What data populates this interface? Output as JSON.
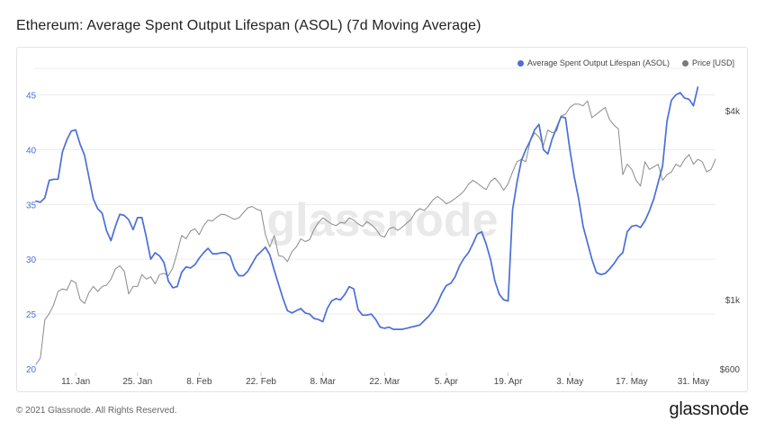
{
  "title": "Ethereum: Average Spent Output Lifespan (ASOL) (7d Moving Average)",
  "footer": {
    "copyright": "© 2021 Glassnode. All Rights Reserved.",
    "brand": "glassnode"
  },
  "watermark": "glassnode",
  "colors": {
    "asol": "#4a6fd8",
    "price": "#8a8a8a",
    "grid": "#ececec"
  },
  "chart_data": {
    "type": "line",
    "x_axis": {
      "tick_labels": [
        "11. Jan",
        "25. Jan",
        "8. Feb",
        "22. Feb",
        "8. Mar",
        "22. Mar",
        "5. Apr",
        "19. Apr",
        "3. May",
        "17. May",
        "31. May"
      ],
      "tick_days": [
        10,
        24,
        38,
        52,
        66,
        80,
        94,
        108,
        122,
        136,
        150
      ],
      "range_days": [
        1,
        155
      ]
    },
    "y_left": {
      "ticks": [
        20,
        25,
        30,
        35,
        40,
        45
      ],
      "range": [
        20,
        47.5
      ]
    },
    "y_right": {
      "scale": "log",
      "tick_labels": [
        "$600",
        "$1k",
        "$4k"
      ],
      "tick_values": [
        600,
        1000,
        4000
      ],
      "range": [
        600,
        5500
      ]
    },
    "legend": {
      "placement": "top-right",
      "entries": [
        "Average Spent Output Lifespan (ASOL)",
        "Price [USD]"
      ]
    },
    "series": [
      {
        "name": "Average Spent Output Lifespan (ASOL)",
        "axis": "left",
        "points": [
          [
            1,
            35.3
          ],
          [
            2,
            35.2
          ],
          [
            3,
            35.6
          ],
          [
            4,
            37.2
          ],
          [
            5,
            37.3
          ],
          [
            6,
            37.3
          ],
          [
            7,
            39.8
          ],
          [
            8,
            40.9
          ],
          [
            9,
            41.7
          ],
          [
            10,
            41.8
          ],
          [
            11,
            40.5
          ],
          [
            12,
            39.5
          ],
          [
            13,
            37.5
          ],
          [
            14,
            35.5
          ],
          [
            15,
            34.6
          ],
          [
            16,
            34.2
          ],
          [
            17,
            32.6
          ],
          [
            18,
            31.7
          ],
          [
            19,
            33.0
          ],
          [
            20,
            34.1
          ],
          [
            21,
            34.0
          ],
          [
            22,
            33.6
          ],
          [
            23,
            32.7
          ],
          [
            24,
            33.8
          ],
          [
            25,
            33.8
          ],
          [
            26,
            32.0
          ],
          [
            27,
            30.0
          ],
          [
            28,
            30.6
          ],
          [
            29,
            30.3
          ],
          [
            30,
            29.7
          ],
          [
            31,
            28.0
          ],
          [
            32,
            27.4
          ],
          [
            33,
            27.5
          ],
          [
            34,
            28.8
          ],
          [
            35,
            29.3
          ],
          [
            36,
            29.2
          ],
          [
            37,
            29.5
          ],
          [
            38,
            30.1
          ],
          [
            39,
            30.6
          ],
          [
            40,
            31.0
          ],
          [
            41,
            30.5
          ],
          [
            42,
            30.5
          ],
          [
            43,
            30.6
          ],
          [
            44,
            30.6
          ],
          [
            45,
            30.3
          ],
          [
            46,
            29.1
          ],
          [
            47,
            28.5
          ],
          [
            48,
            28.5
          ],
          [
            49,
            28.9
          ],
          [
            50,
            29.6
          ],
          [
            51,
            30.3
          ],
          [
            52,
            30.7
          ],
          [
            53,
            31.1
          ],
          [
            54,
            30.4
          ],
          [
            55,
            29.0
          ],
          [
            56,
            27.7
          ],
          [
            57,
            26.4
          ],
          [
            58,
            25.3
          ],
          [
            59,
            25.1
          ],
          [
            60,
            25.3
          ],
          [
            61,
            25.5
          ],
          [
            62,
            25.1
          ],
          [
            63,
            25.0
          ],
          [
            64,
            24.6
          ],
          [
            65,
            24.5
          ],
          [
            66,
            24.3
          ],
          [
            67,
            25.5
          ],
          [
            68,
            26.2
          ],
          [
            69,
            26.4
          ],
          [
            70,
            26.3
          ],
          [
            71,
            26.8
          ],
          [
            72,
            27.5
          ],
          [
            73,
            27.3
          ],
          [
            74,
            25.4
          ],
          [
            75,
            24.9
          ],
          [
            76,
            24.9
          ],
          [
            77,
            25.0
          ],
          [
            78,
            24.5
          ],
          [
            79,
            23.8
          ],
          [
            80,
            23.7
          ],
          [
            81,
            23.8
          ],
          [
            82,
            23.6
          ],
          [
            83,
            23.6
          ],
          [
            84,
            23.6
          ],
          [
            85,
            23.7
          ],
          [
            86,
            23.8
          ],
          [
            87,
            23.9
          ],
          [
            88,
            24.0
          ],
          [
            89,
            24.4
          ],
          [
            90,
            24.8
          ],
          [
            91,
            25.3
          ],
          [
            92,
            26.0
          ],
          [
            93,
            26.9
          ],
          [
            94,
            27.6
          ],
          [
            95,
            27.8
          ],
          [
            96,
            28.4
          ],
          [
            97,
            29.4
          ],
          [
            98,
            30.1
          ],
          [
            99,
            30.6
          ],
          [
            100,
            31.4
          ],
          [
            101,
            32.3
          ],
          [
            102,
            32.5
          ],
          [
            103,
            31.4
          ],
          [
            104,
            30.0
          ],
          [
            105,
            28.0
          ],
          [
            106,
            26.8
          ],
          [
            107,
            26.3
          ],
          [
            108,
            26.2
          ],
          [
            109,
            34.5
          ],
          [
            110,
            37.0
          ],
          [
            111,
            39.0
          ],
          [
            112,
            40.0
          ],
          [
            113,
            40.8
          ],
          [
            114,
            41.8
          ],
          [
            115,
            42.3
          ],
          [
            116,
            40.0
          ],
          [
            117,
            39.6
          ],
          [
            118,
            41.0
          ],
          [
            119,
            42.0
          ],
          [
            120,
            43.0
          ],
          [
            121,
            42.9
          ],
          [
            122,
            40.0
          ],
          [
            123,
            37.5
          ],
          [
            124,
            35.5
          ],
          [
            125,
            33.0
          ],
          [
            126,
            31.5
          ],
          [
            127,
            30.0
          ],
          [
            128,
            28.8
          ],
          [
            129,
            28.6
          ],
          [
            130,
            28.7
          ],
          [
            131,
            29.1
          ],
          [
            132,
            29.6
          ],
          [
            133,
            30.2
          ],
          [
            134,
            30.6
          ],
          [
            135,
            32.5
          ],
          [
            136,
            33.0
          ],
          [
            137,
            33.1
          ],
          [
            138,
            32.9
          ],
          [
            139,
            33.5
          ],
          [
            140,
            34.4
          ],
          [
            141,
            35.5
          ],
          [
            142,
            37.0
          ],
          [
            143,
            38.5
          ],
          [
            144,
            42.6
          ],
          [
            145,
            44.5
          ],
          [
            146,
            45.0
          ],
          [
            147,
            45.2
          ],
          [
            148,
            44.7
          ],
          [
            149,
            44.6
          ],
          [
            150,
            44.0
          ],
          [
            151,
            45.7
          ]
        ]
      },
      {
        "name": "Price [USD]",
        "axis": "right",
        "points": [
          [
            1,
            620
          ],
          [
            2,
            650
          ],
          [
            3,
            860
          ],
          [
            4,
            900
          ],
          [
            5,
            960
          ],
          [
            6,
            1060
          ],
          [
            7,
            1080
          ],
          [
            8,
            1070
          ],
          [
            9,
            1150
          ],
          [
            10,
            1130
          ],
          [
            11,
            1000
          ],
          [
            12,
            970
          ],
          [
            13,
            1050
          ],
          [
            14,
            1100
          ],
          [
            15,
            1060
          ],
          [
            16,
            1100
          ],
          [
            17,
            1110
          ],
          [
            18,
            1160
          ],
          [
            19,
            1250
          ],
          [
            20,
            1280
          ],
          [
            21,
            1230
          ],
          [
            22,
            1040
          ],
          [
            23,
            1100
          ],
          [
            24,
            1100
          ],
          [
            25,
            1200
          ],
          [
            26,
            1160
          ],
          [
            27,
            1180
          ],
          [
            28,
            1120
          ],
          [
            29,
            1200
          ],
          [
            30,
            1210
          ],
          [
            31,
            1190
          ],
          [
            32,
            1260
          ],
          [
            33,
            1410
          ],
          [
            34,
            1600
          ],
          [
            35,
            1560
          ],
          [
            36,
            1650
          ],
          [
            37,
            1680
          ],
          [
            38,
            1610
          ],
          [
            39,
            1720
          ],
          [
            40,
            1790
          ],
          [
            41,
            1780
          ],
          [
            42,
            1830
          ],
          [
            43,
            1870
          ],
          [
            44,
            1860
          ],
          [
            45,
            1830
          ],
          [
            46,
            1800
          ],
          [
            47,
            1820
          ],
          [
            48,
            1890
          ],
          [
            49,
            1960
          ],
          [
            50,
            1980
          ],
          [
            51,
            1940
          ],
          [
            52,
            1920
          ],
          [
            53,
            1610
          ],
          [
            54,
            1470
          ],
          [
            55,
            1600
          ],
          [
            56,
            1380
          ],
          [
            57,
            1370
          ],
          [
            58,
            1320
          ],
          [
            59,
            1420
          ],
          [
            60,
            1470
          ],
          [
            61,
            1560
          ],
          [
            62,
            1530
          ],
          [
            63,
            1550
          ],
          [
            64,
            1670
          ],
          [
            65,
            1760
          ],
          [
            66,
            1820
          ],
          [
            67,
            1780
          ],
          [
            68,
            1740
          ],
          [
            69,
            1720
          ],
          [
            70,
            1760
          ],
          [
            71,
            1750
          ],
          [
            72,
            1820
          ],
          [
            73,
            1790
          ],
          [
            74,
            1740
          ],
          [
            75,
            1710
          ],
          [
            76,
            1770
          ],
          [
            77,
            1730
          ],
          [
            78,
            1680
          ],
          [
            79,
            1600
          ],
          [
            80,
            1580
          ],
          [
            81,
            1680
          ],
          [
            82,
            1700
          ],
          [
            83,
            1660
          ],
          [
            84,
            1700
          ],
          [
            85,
            1750
          ],
          [
            86,
            1800
          ],
          [
            87,
            1900
          ],
          [
            88,
            1950
          ],
          [
            89,
            1920
          ],
          [
            90,
            1990
          ],
          [
            91,
            2080
          ],
          [
            92,
            2130
          ],
          [
            93,
            2080
          ],
          [
            94,
            2020
          ],
          [
            95,
            2050
          ],
          [
            96,
            2100
          ],
          [
            97,
            2150
          ],
          [
            98,
            2220
          ],
          [
            99,
            2330
          ],
          [
            100,
            2400
          ],
          [
            101,
            2350
          ],
          [
            102,
            2290
          ],
          [
            103,
            2240
          ],
          [
            104,
            2380
          ],
          [
            105,
            2440
          ],
          [
            106,
            2350
          ],
          [
            107,
            2230
          ],
          [
            108,
            2340
          ],
          [
            109,
            2550
          ],
          [
            110,
            2750
          ],
          [
            111,
            2800
          ],
          [
            112,
            2750
          ],
          [
            113,
            3200
          ],
          [
            114,
            3400
          ],
          [
            115,
            3300
          ],
          [
            116,
            3100
          ],
          [
            117,
            3470
          ],
          [
            118,
            3400
          ],
          [
            119,
            3450
          ],
          [
            120,
            3850
          ],
          [
            121,
            3900
          ],
          [
            122,
            4100
          ],
          [
            123,
            4200
          ],
          [
            124,
            4200
          ],
          [
            125,
            4150
          ],
          [
            126,
            4300
          ],
          [
            127,
            3800
          ],
          [
            128,
            3900
          ],
          [
            129,
            4000
          ],
          [
            130,
            4100
          ],
          [
            131,
            3750
          ],
          [
            132,
            3600
          ],
          [
            133,
            3500
          ],
          [
            134,
            2500
          ],
          [
            135,
            2700
          ],
          [
            136,
            2600
          ],
          [
            137,
            2400
          ],
          [
            138,
            2300
          ],
          [
            139,
            2750
          ],
          [
            140,
            2600
          ],
          [
            141,
            2650
          ],
          [
            142,
            2700
          ],
          [
            143,
            2400
          ],
          [
            144,
            2500
          ],
          [
            145,
            2550
          ],
          [
            146,
            2700
          ],
          [
            147,
            2650
          ],
          [
            148,
            2800
          ],
          [
            149,
            2900
          ],
          [
            150,
            2700
          ],
          [
            151,
            2800
          ],
          [
            152,
            2750
          ],
          [
            153,
            2550
          ],
          [
            154,
            2600
          ],
          [
            155,
            2800
          ]
        ]
      }
    ]
  }
}
